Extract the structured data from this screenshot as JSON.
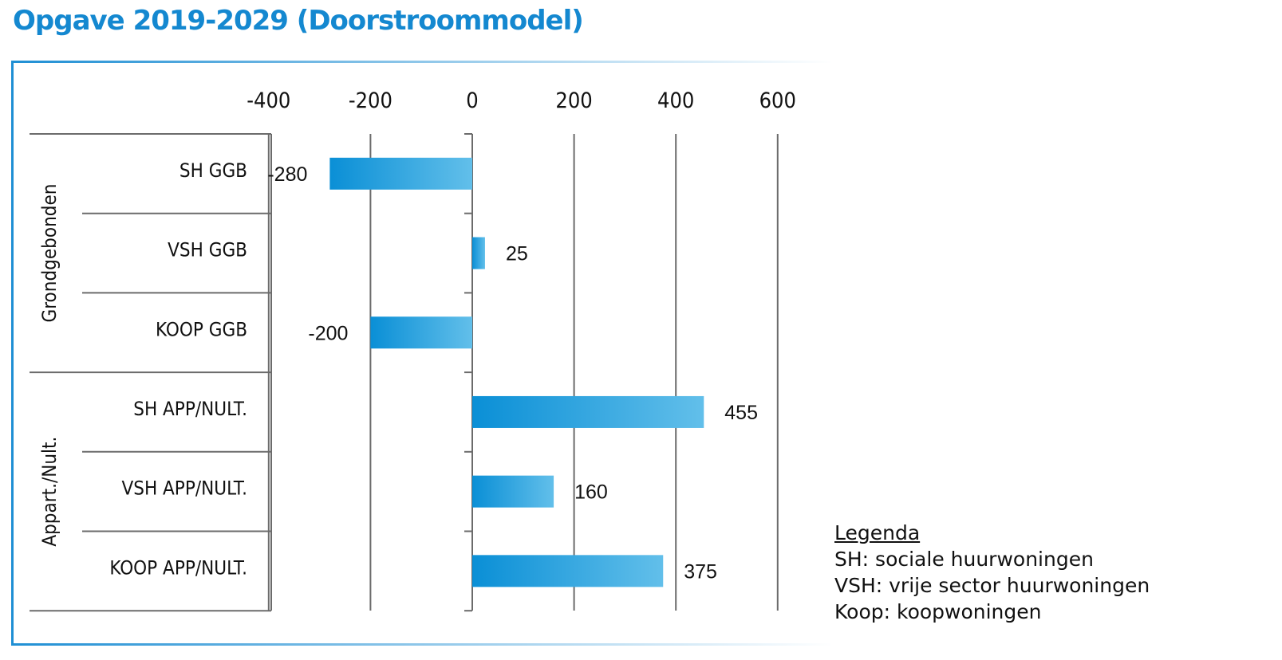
{
  "title": "Opgave 2019-2029 (Doorstroommodel)",
  "colors": {
    "title": "#1488d0",
    "frame": "#1f8fd4",
    "bar_dark": "#0a8fd6",
    "bar_light": "#62bfea",
    "grid": "#6b6b6b"
  },
  "chart_data": {
    "type": "bar",
    "orientation": "horizontal",
    "title": "Opgave 2019-2029 (Doorstroommodel)",
    "xlim": [
      -400,
      600
    ],
    "xticks": [
      "-400",
      "-200",
      "0",
      "200",
      "400",
      "600"
    ],
    "categories": [
      "SH GGB",
      "VSH GGB",
      "KOOP GGB",
      "SH APP/NULT.",
      "VSH APP/NULT.",
      "KOOP APP/NULT."
    ],
    "values": [
      -280,
      25,
      -200,
      455,
      160,
      375
    ],
    "value_labels": [
      "-280",
      "25",
      "-200",
      "455",
      "160",
      "375"
    ],
    "groups": [
      {
        "label": "Grondgebonden",
        "categories": [
          "SH GGB",
          "VSH GGB",
          "KOOP GGB"
        ]
      },
      {
        "label": "Appart./Nult.",
        "categories": [
          "SH APP/NULT.",
          "VSH APP/NULT.",
          "KOOP APP/NULT."
        ]
      }
    ],
    "grid": true,
    "legend": "bottom-right"
  },
  "legend": {
    "title": "Legenda",
    "items": [
      "SH: sociale huurwoningen",
      "VSH: vrije sector huurwoningen",
      "Koop: koopwoningen"
    ]
  }
}
